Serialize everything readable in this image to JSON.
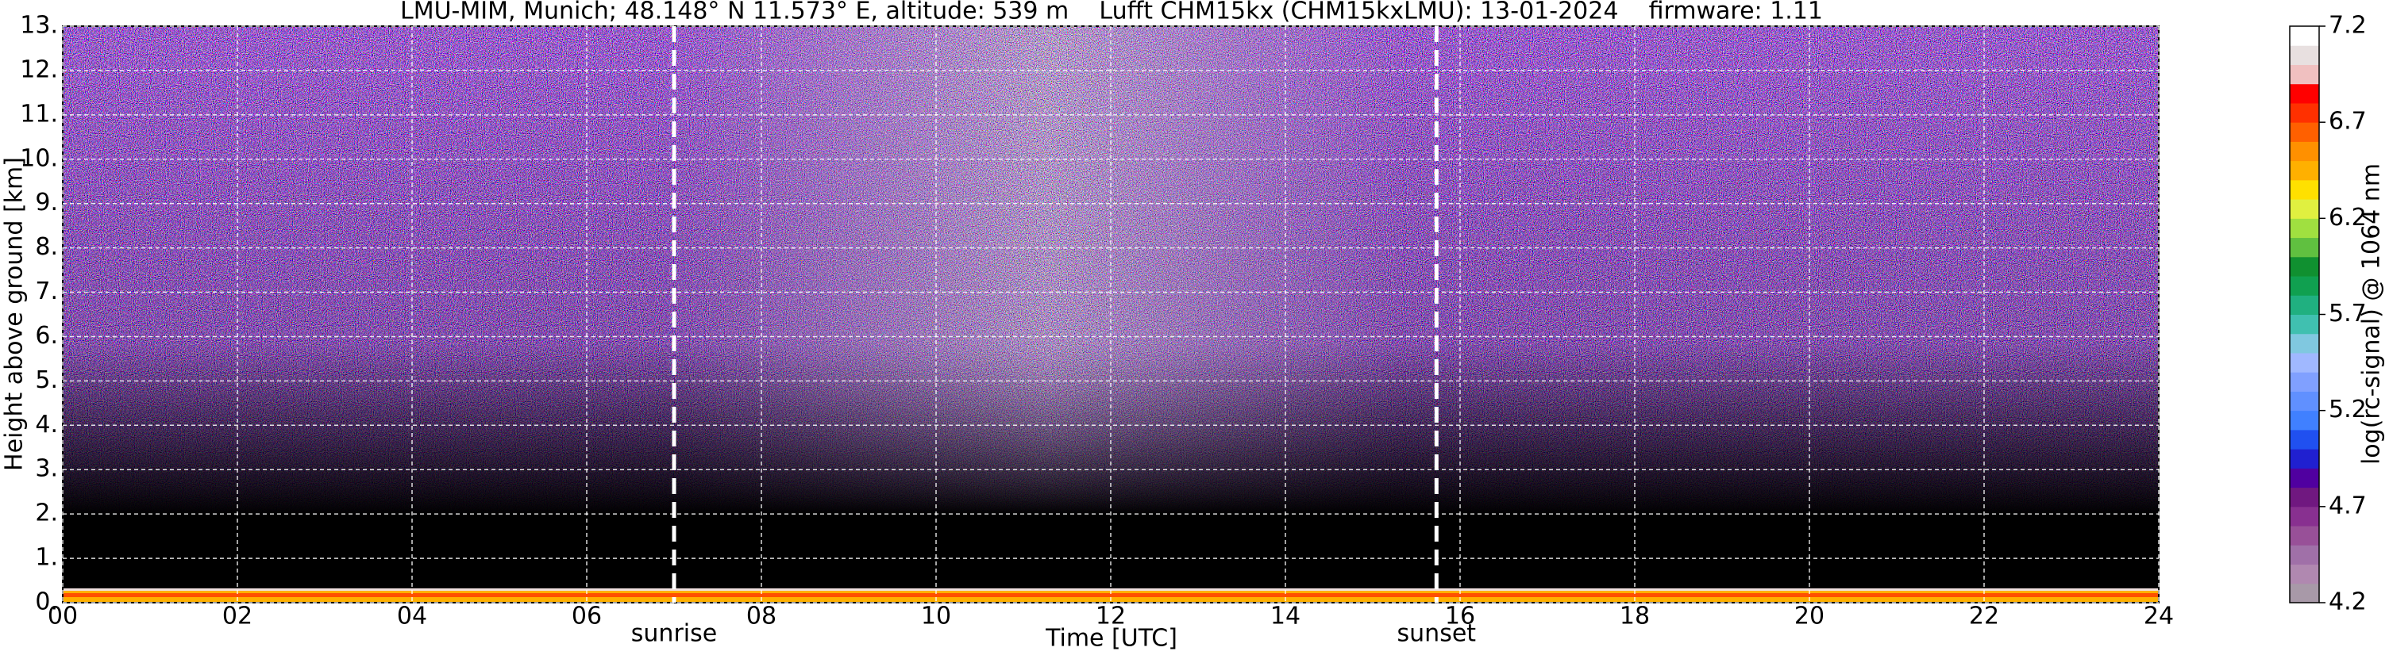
{
  "chart_data": {
    "type": "heatmap",
    "title": "LMU-MIM, Munich; 48.148° N 11.573° E, altitude: 539 m    Lufft CHM15kx (CHM15kxLMU): 13-01-2024    firmware: 1.11",
    "x_label": "Time [UTC]",
    "y_label": "Height above ground [km]",
    "xlim": [
      0,
      24
    ],
    "xticks": [
      {
        "value": 0,
        "label": "00"
      },
      {
        "value": 2,
        "label": "02"
      },
      {
        "value": 4,
        "label": "04"
      },
      {
        "value": 6,
        "label": "06"
      },
      {
        "value": 8,
        "label": "08"
      },
      10,
      12,
      14,
      16,
      18,
      20,
      22,
      24
    ],
    "ylim": [
      0,
      13
    ],
    "yticks": [
      {
        "value": 0,
        "label": "0."
      },
      {
        "value": 1,
        "label": "1."
      },
      {
        "value": 2,
        "label": "2."
      },
      {
        "value": 3,
        "label": "3."
      },
      {
        "value": 4,
        "label": "4."
      },
      {
        "value": 5,
        "label": "5."
      },
      {
        "value": 6,
        "label": "6."
      },
      {
        "value": 7,
        "label": "7."
      },
      {
        "value": 8,
        "label": "8."
      },
      {
        "value": 9,
        "label": "9."
      },
      {
        "value": 10,
        "label": "10."
      },
      {
        "value": 11,
        "label": "11."
      },
      {
        "value": 12,
        "label": "12."
      },
      {
        "value": 13,
        "label": "13."
      }
    ],
    "grid": true,
    "annotations": [
      {
        "text": "sunrise",
        "x": 7.0
      },
      {
        "text": "sunset",
        "x": 15.73
      }
    ],
    "colorbar": {
      "label": "log(rc-signal) @ 1064 nm",
      "lim": [
        4.2,
        7.2
      ],
      "ticks": [
        4.2,
        4.7,
        5.2,
        5.7,
        6.2,
        6.7,
        7.2
      ],
      "colors": [
        "#a899a8",
        "#b088b0",
        "#a070a8",
        "#985098",
        "#883090",
        "#701880",
        "#5000a0",
        "#2020d0",
        "#2050f0",
        "#4080ff",
        "#6090ff",
        "#80a0ff",
        "#a0b8ff",
        "#80c8e0",
        "#40c0b0",
        "#20b080",
        "#10a050",
        "#109030",
        "#60c040",
        "#a0e040",
        "#e0f040",
        "#ffe000",
        "#ffb000",
        "#ff9000",
        "#ff6000",
        "#ff3000",
        "#ff0000",
        "#f0c0c0",
        "#e8e0e0",
        "#ffffff"
      ]
    }
  }
}
